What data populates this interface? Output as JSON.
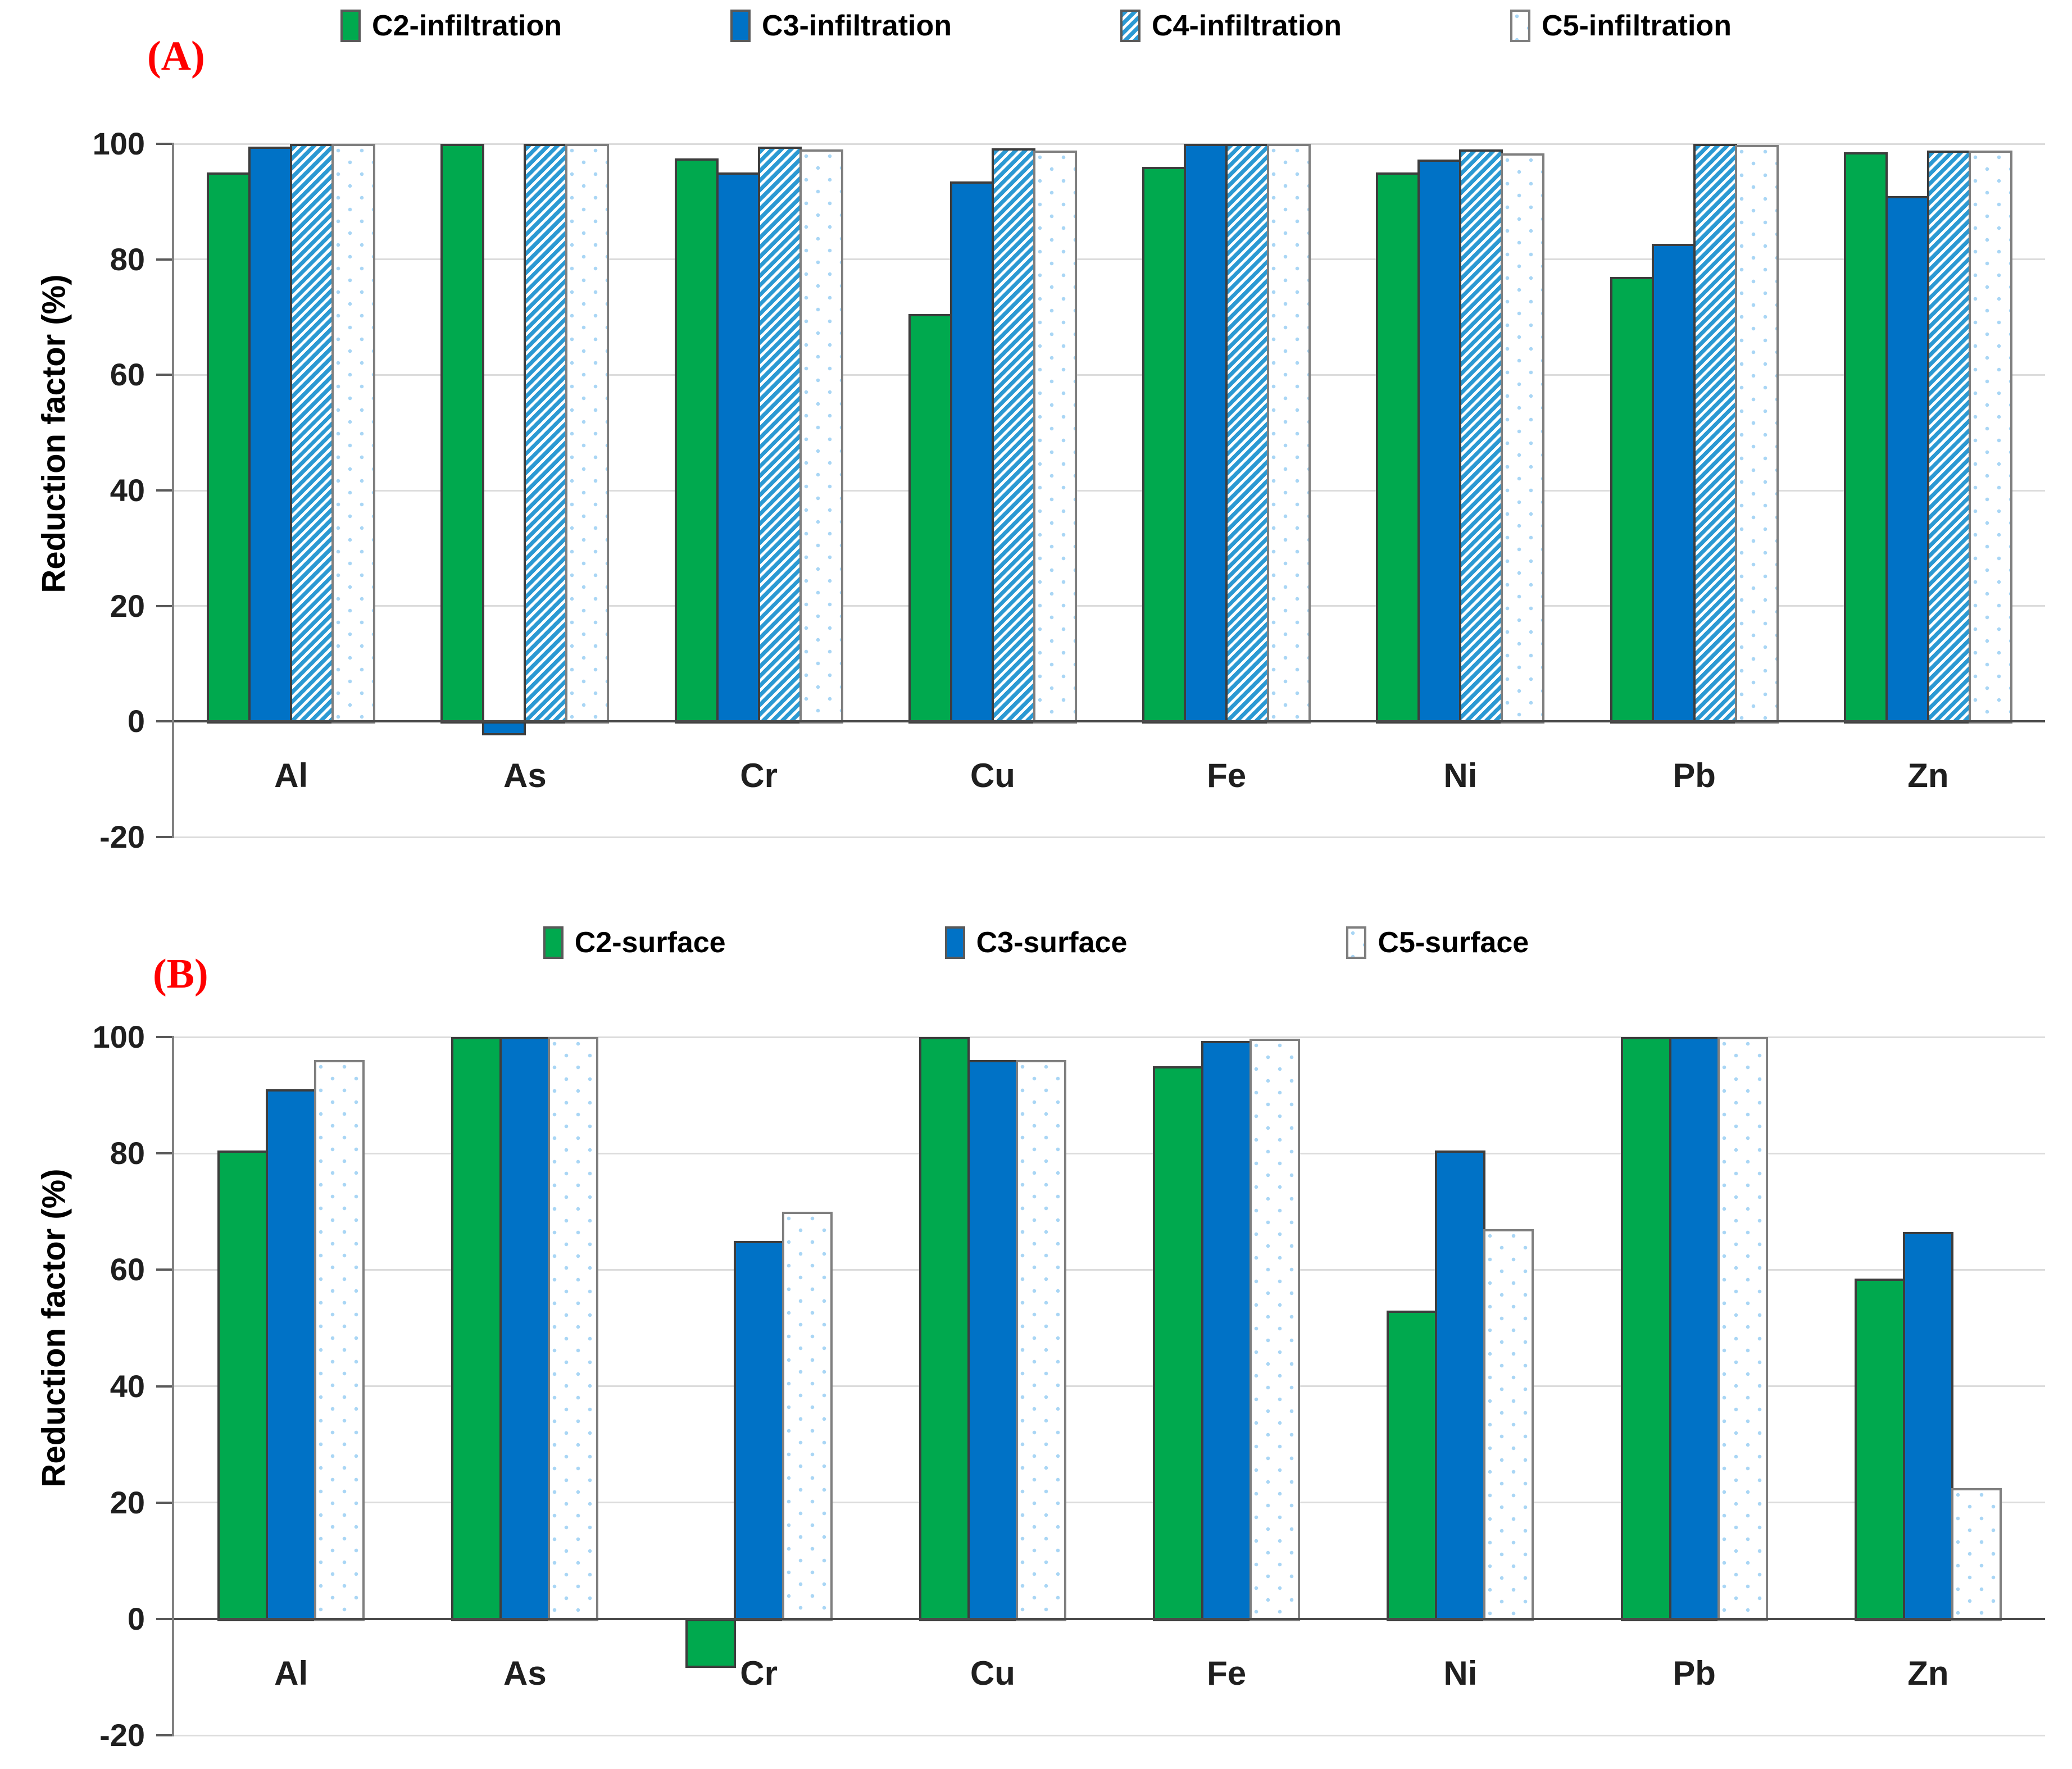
{
  "chart_data": [
    {
      "type": "bar",
      "panel_label": "(A)",
      "ylabel": "Reduction factor (%)",
      "ylim": [
        -20,
        100
      ],
      "yticks": [
        100,
        80,
        60,
        40,
        20,
        0,
        -20
      ],
      "grid": true,
      "legend_position": "top",
      "categories": [
        "Al",
        "As",
        "Cr",
        "Cu",
        "Fe",
        "Ni",
        "Pb",
        "Zn"
      ],
      "series": [
        {
          "name": "C2-infiltration",
          "style": "fill-green",
          "color": "#00a94e",
          "values": [
            95,
            100,
            97.5,
            70.5,
            96,
            95,
            77,
            98.5
          ]
        },
        {
          "name": "C3-infiltration",
          "style": "fill-blue",
          "color": "#0072c6",
          "values": [
            99.5,
            -2,
            95,
            93.5,
            100,
            97.3,
            82.7,
            91
          ]
        },
        {
          "name": "C4-infiltration",
          "style": "pat-hatch",
          "color": "#2b99d3",
          "values": [
            100,
            100,
            99.5,
            99.2,
            100,
            99,
            100,
            98.8
          ]
        },
        {
          "name": "C5-infiltration",
          "style": "pat-dots",
          "color": "#a9d6f5",
          "values": [
            100,
            100,
            99,
            98.8,
            100,
            98.3,
            99.8,
            98.8
          ]
        }
      ]
    },
    {
      "type": "bar",
      "panel_label": "(B)",
      "ylabel": "Reduction factor (%)",
      "ylim": [
        -20,
        100
      ],
      "yticks": [
        100,
        80,
        60,
        40,
        20,
        0,
        -20
      ],
      "grid": true,
      "legend_position": "top",
      "categories": [
        "Al",
        "As",
        "Cr",
        "Cu",
        "Fe",
        "Ni",
        "Pb",
        "Zn"
      ],
      "series": [
        {
          "name": "C2-surface",
          "style": "fill-green",
          "color": "#00a94e",
          "values": [
            80.5,
            100,
            -8,
            100,
            95,
            53,
            100,
            58.5
          ]
        },
        {
          "name": "C3-surface",
          "style": "fill-blue",
          "color": "#0072c6",
          "values": [
            91,
            100,
            65,
            96,
            99.3,
            80.5,
            100,
            66.5
          ]
        },
        {
          "name": "C5-surface",
          "style": "pat-dots",
          "color": "#a9d6f5",
          "values": [
            96,
            100,
            70,
            96,
            99.7,
            67,
            100,
            22.5
          ]
        }
      ]
    }
  ],
  "colors": {
    "grid": "#dcdcdc",
    "axis": "#808080",
    "baseline": "#4a4a4a",
    "panel_label": "#ff0000",
    "bar_border": "#3d3d3d"
  }
}
